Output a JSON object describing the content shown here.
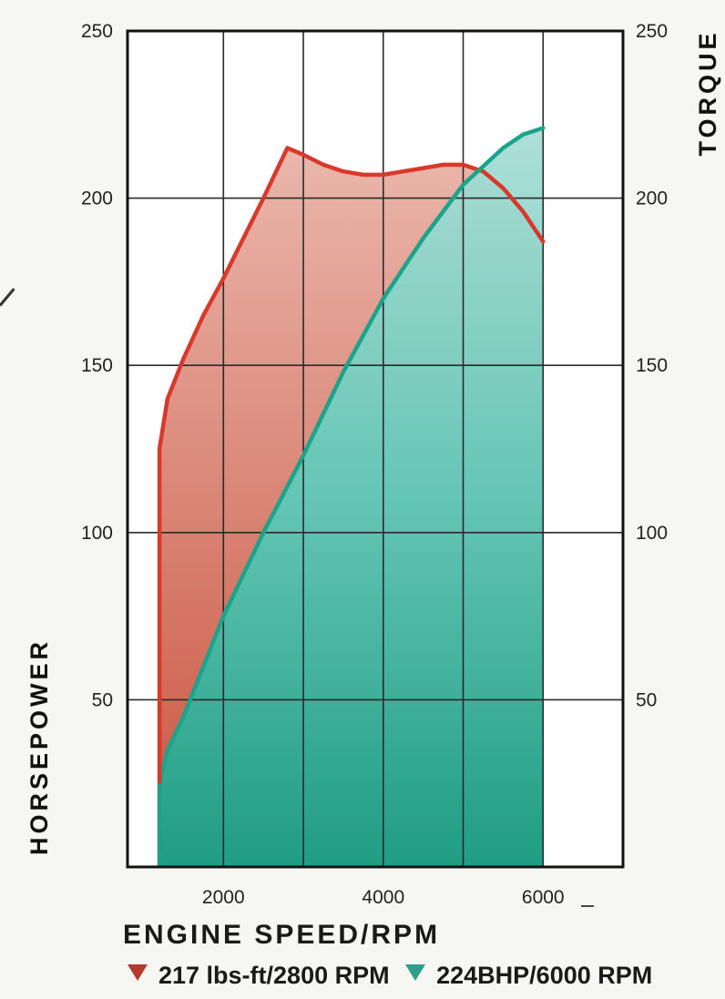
{
  "chart_data": {
    "type": "area",
    "x_ticks": [
      2000,
      4000,
      6000
    ],
    "xlim": [
      800,
      7000
    ],
    "ylim": [
      0,
      250
    ],
    "y_ticks_left": [
      "50",
      "100",
      "150",
      "200",
      "250"
    ],
    "y_ticks_right": [
      "50",
      "100",
      "150",
      "200",
      "250"
    ],
    "y_tick_values": [
      50,
      100,
      150,
      200,
      250
    ],
    "xlabel": "ENGINE SPEED/RPM",
    "ylabel_left": "HORSEPOWER",
    "ylabel_right": "TORQUE",
    "grid": true,
    "series": [
      {
        "key": "torque",
        "color": "#d9392a",
        "fill": "#d98678",
        "x": [
          1200,
          1300,
          1500,
          1750,
          2000,
          2250,
          2500,
          2800,
          3000,
          3250,
          3500,
          3750,
          4000,
          4250,
          4500,
          4750,
          5000,
          5250,
          5500,
          5750,
          6000
        ],
        "values": [
          125,
          140,
          152,
          165,
          176,
          188,
          200,
          215,
          213,
          210,
          208,
          207,
          207,
          208,
          209,
          210,
          210,
          208,
          203,
          196,
          187
        ]
      },
      {
        "key": "horsepower",
        "color": "#1ba38c",
        "fill": "#5ec9b8",
        "x": [
          1200,
          1300,
          1500,
          2000,
          2500,
          3000,
          3500,
          4000,
          4500,
          5000,
          5500,
          5750,
          6000
        ],
        "values": [
          25,
          35,
          45,
          75,
          100,
          123,
          148,
          170,
          188,
          204,
          215,
          219,
          221
        ]
      }
    ],
    "legend": [
      {
        "series": "torque",
        "label": "217 lbs-ft/2800 RPM",
        "color": "#b2392b"
      },
      {
        "series": "horsepower",
        "label": "224BHP/6000 RPM",
        "color": "#2f9e8a"
      }
    ]
  }
}
